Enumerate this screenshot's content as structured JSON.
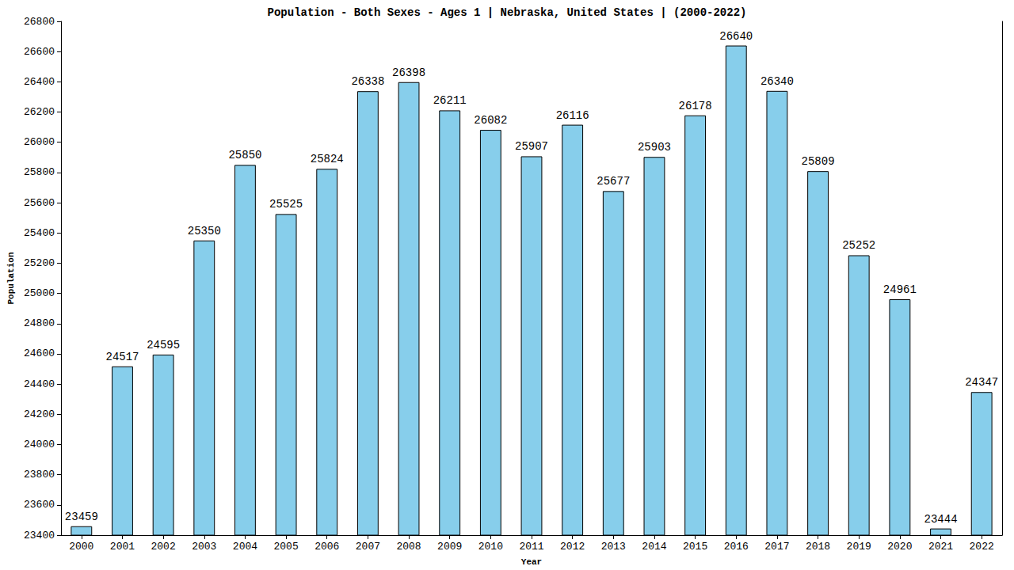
{
  "chart_data": {
    "type": "bar",
    "title": "Population - Both Sexes - Ages 1 | Nebraska, United States | (2000-2022)",
    "x_label": "Year",
    "y_label": "Population",
    "categories": [
      "2000",
      "2001",
      "2002",
      "2003",
      "2004",
      "2005",
      "2006",
      "2007",
      "2008",
      "2009",
      "2010",
      "2011",
      "2012",
      "2013",
      "2014",
      "2015",
      "2016",
      "2017",
      "2018",
      "2019",
      "2020",
      "2021",
      "2022"
    ],
    "values": [
      23459,
      24517,
      24595,
      25350,
      25850,
      25525,
      25824,
      26338,
      26398,
      26211,
      26082,
      25907,
      26116,
      25677,
      25903,
      26178,
      26640,
      26340,
      25809,
      25252,
      24961,
      23444,
      24347
    ],
    "color": "#87ceeb",
    "ylim": [
      23400,
      26800
    ],
    "yticks": [
      23400,
      23600,
      23800,
      24000,
      24200,
      24400,
      24600,
      24800,
      25000,
      25200,
      25400,
      25600,
      25800,
      26000,
      26200,
      26400,
      26600,
      26800
    ],
    "grid": false,
    "data_labels": true
  }
}
